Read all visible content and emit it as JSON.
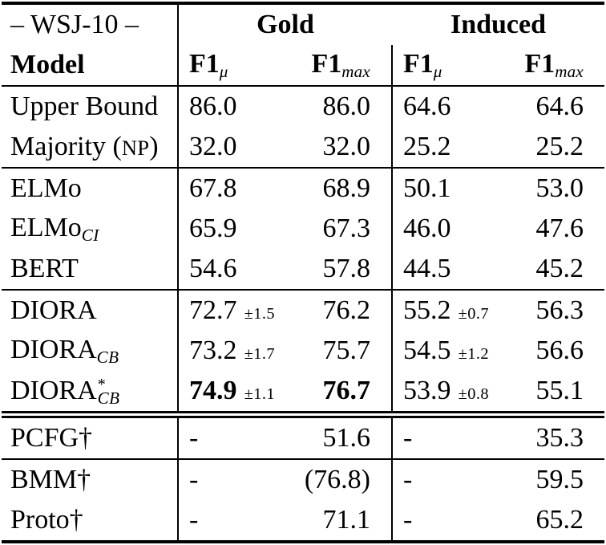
{
  "header": {
    "dataset": "– WSJ-10 –",
    "model": "Model",
    "gold": "Gold",
    "induced": "Induced",
    "f1": "F1",
    "mu_sub": "μ",
    "max_sub": "max"
  },
  "rows": {
    "upper_bound": {
      "model": "Upper Bound",
      "gold_mu": "86.0",
      "gold_max": "86.0",
      "ind_mu": "64.6",
      "ind_max": "64.6"
    },
    "majority": {
      "model_pre": "Majority (",
      "model_sc": "NP",
      "model_post": ")",
      "gold_mu": "32.0",
      "gold_max": "32.0",
      "ind_mu": "25.2",
      "ind_max": "25.2"
    },
    "elmo": {
      "model": "ELMo",
      "gold_mu": "67.8",
      "gold_max": "68.9",
      "ind_mu": "50.1",
      "ind_max": "53.0"
    },
    "elmo_ci": {
      "model": "ELMo",
      "model_sub": "CI",
      "gold_mu": "65.9",
      "gold_max": "67.3",
      "ind_mu": "46.0",
      "ind_max": "47.6"
    },
    "bert": {
      "model": "BERT",
      "gold_mu": "54.6",
      "gold_max": "57.8",
      "ind_mu": "44.5",
      "ind_max": "45.2"
    },
    "diora": {
      "model": "DIORA",
      "gold_mu": "72.7",
      "gold_mu_pm": "±1.5",
      "gold_max": "76.2",
      "ind_mu": "55.2",
      "ind_mu_pm": "±0.7",
      "ind_max": "56.3"
    },
    "diora_cb": {
      "model": "DIORA",
      "model_sub": "CB",
      "gold_mu": "73.2",
      "gold_mu_pm": "±1.7",
      "gold_max": "75.7",
      "ind_mu": "54.5",
      "ind_mu_pm": "±1.2",
      "ind_max": "56.6"
    },
    "diora_cb_star": {
      "model": "DIORA",
      "model_sup": "*",
      "model_sub": "CB",
      "gold_mu": "74.9",
      "gold_mu_pm": "±1.1",
      "gold_max": "76.7",
      "ind_mu": "53.9",
      "ind_mu_pm": "±0.8",
      "ind_max": "55.1"
    },
    "pcfg": {
      "model": "PCFG†",
      "gold_mu": "-",
      "gold_max": "51.6",
      "ind_mu": "-",
      "ind_max": "35.3"
    },
    "bmm": {
      "model": "BMM†",
      "gold_mu": "-",
      "gold_max": "(76.8)",
      "ind_mu": "-",
      "ind_max": "59.5"
    },
    "proto": {
      "model": "Proto†",
      "gold_mu": "-",
      "gold_max": "71.1",
      "ind_mu": "-",
      "ind_max": "65.2"
    }
  }
}
